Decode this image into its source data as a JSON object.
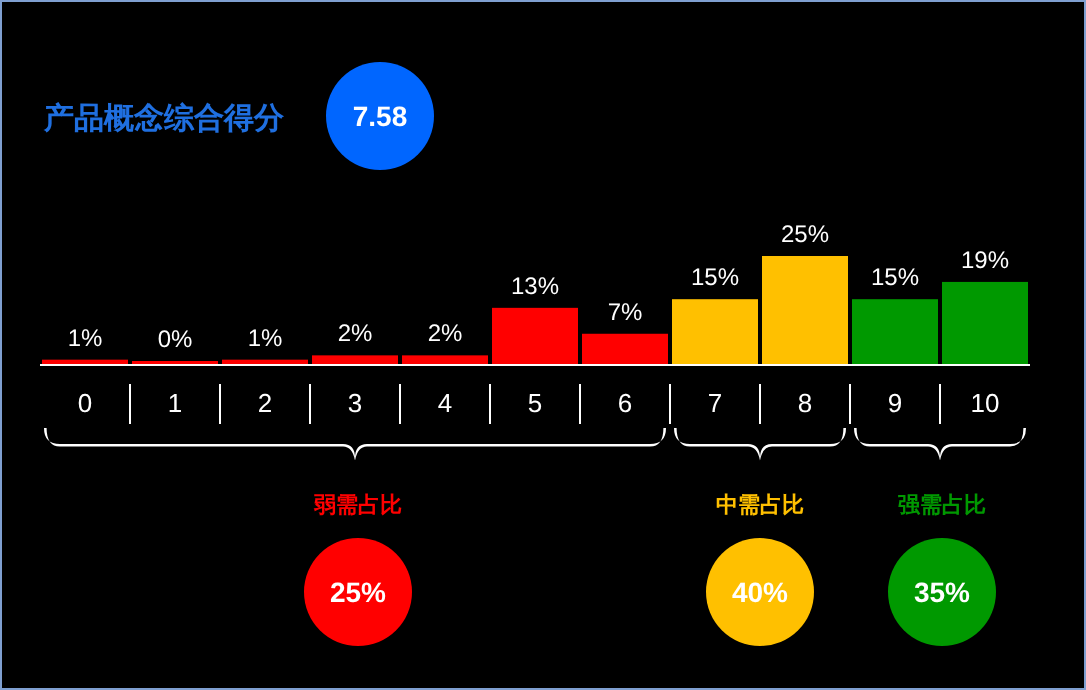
{
  "chart_data": {
    "type": "bar",
    "categories": [
      "0",
      "1",
      "2",
      "3",
      "4",
      "5",
      "6",
      "7",
      "8",
      "9",
      "10"
    ],
    "values": [
      1,
      0,
      1,
      2,
      2,
      13,
      7,
      15,
      25,
      15,
      19
    ],
    "colors": [
      "#ff0000",
      "#ff0000",
      "#ff0000",
      "#ff0000",
      "#ff0000",
      "#ff0000",
      "#ff0000",
      "#ffc000",
      "#ffc000",
      "#009900",
      "#009900"
    ],
    "value_labels": [
      "1%",
      "0%",
      "1%",
      "2%",
      "2%",
      "13%",
      "7%",
      "15%",
      "25%",
      "15%",
      "19%"
    ],
    "annotations": [
      "产品概念综合得分",
      "7.58",
      "弱需占比",
      "25%",
      "中需占比",
      "40%",
      "强需占比",
      "35%"
    ]
  }
}
